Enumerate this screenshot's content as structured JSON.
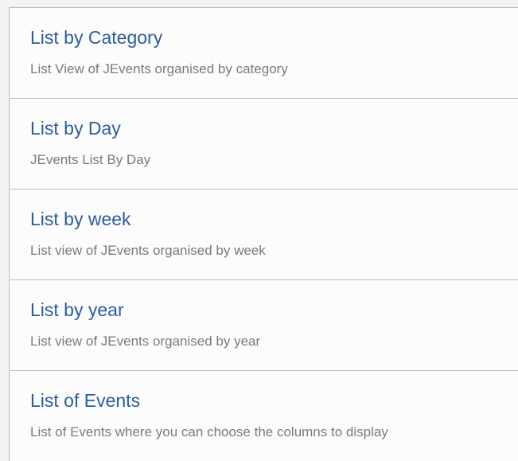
{
  "colors": {
    "title": "#2d5d9c",
    "description": "#7a7a7a",
    "border": "#b8bcc4"
  },
  "items": [
    {
      "title": "List by Category",
      "description": "List View of JEvents organised by category"
    },
    {
      "title": "List by Day",
      "description": "JEvents List By Day"
    },
    {
      "title": "List by week",
      "description": "List view of JEvents organised by week"
    },
    {
      "title": "List by year",
      "description": "List view of JEvents organised by year"
    },
    {
      "title": "List of Events",
      "description": "List of Events where you can choose the columns to display"
    }
  ]
}
